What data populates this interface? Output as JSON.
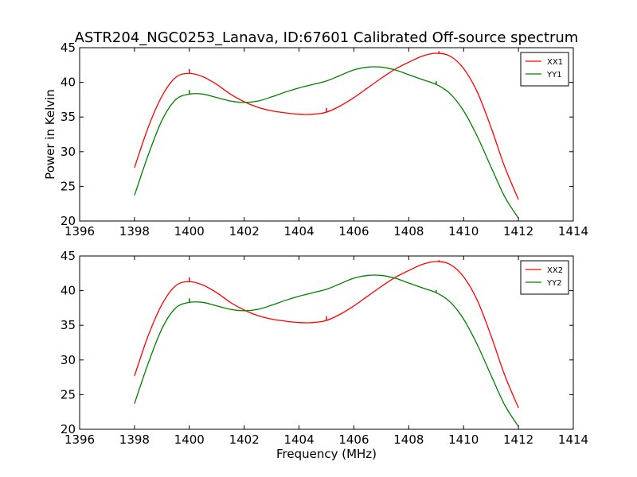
{
  "figure": {
    "title": "ASTR204_NGC0253_Lanava, ID:67601 Calibrated Off-source spectrum"
  },
  "chart_data": [
    {
      "type": "line",
      "xlabel": "",
      "ylabel": "Power in Kelvin",
      "xlim": [
        1396,
        1414
      ],
      "ylim": [
        20,
        45
      ],
      "xticks": [
        1396,
        1398,
        1400,
        1402,
        1404,
        1406,
        1408,
        1410,
        1412,
        1414
      ],
      "yticks": [
        20,
        25,
        30,
        35,
        40,
        45
      ],
      "grid": false,
      "legend": "top-right",
      "series": [
        {
          "name": "XX1",
          "color": "#ff0000",
          "x": [
            1398.0,
            1398.5,
            1399.0,
            1399.5,
            1400.0,
            1400.5,
            1401.0,
            1401.5,
            1402.0,
            1402.5,
            1403.0,
            1403.5,
            1404.0,
            1404.5,
            1405.0,
            1405.5,
            1406.0,
            1406.5,
            1407.0,
            1407.5,
            1408.0,
            1408.5,
            1409.0,
            1409.5,
            1410.0,
            1410.5,
            1411.0,
            1411.5,
            1412.0
          ],
          "y": [
            27.7,
            33.5,
            38.0,
            40.7,
            41.3,
            40.8,
            39.7,
            38.3,
            37.2,
            36.4,
            35.9,
            35.6,
            35.4,
            35.4,
            35.7,
            36.6,
            37.8,
            39.2,
            40.6,
            41.9,
            42.9,
            43.8,
            44.2,
            43.8,
            42.0,
            38.6,
            33.5,
            27.8,
            23.1
          ],
          "spikes": [
            {
              "x": 1400.0,
              "y": 41.9
            },
            {
              "x": 1405.0,
              "y": 36.3
            },
            {
              "x": 1409.1,
              "y": 44.5
            }
          ]
        },
        {
          "name": "YY1",
          "color": "#008000",
          "x": [
            1398.0,
            1398.5,
            1399.0,
            1399.5,
            1400.0,
            1400.5,
            1401.0,
            1401.5,
            1402.0,
            1402.5,
            1403.0,
            1403.5,
            1404.0,
            1404.5,
            1405.0,
            1405.5,
            1406.0,
            1406.5,
            1407.0,
            1407.5,
            1408.0,
            1408.5,
            1409.0,
            1409.5,
            1410.0,
            1410.5,
            1411.0,
            1411.5,
            1412.0
          ],
          "y": [
            23.7,
            29.5,
            34.5,
            37.5,
            38.3,
            38.3,
            37.8,
            37.3,
            37.1,
            37.3,
            37.9,
            38.6,
            39.2,
            39.7,
            40.2,
            41.0,
            41.8,
            42.2,
            42.2,
            41.8,
            41.1,
            40.4,
            39.7,
            38.4,
            35.9,
            32.2,
            27.8,
            23.5,
            20.4
          ],
          "spikes": [
            {
              "x": 1400.0,
              "y": 38.9
            },
            {
              "x": 1409.0,
              "y": 40.2
            }
          ]
        }
      ]
    },
    {
      "type": "line",
      "xlabel": "Frequency (MHz)",
      "ylabel": "",
      "xlim": [
        1396,
        1414
      ],
      "ylim": [
        20,
        45
      ],
      "xticks": [
        1396,
        1398,
        1400,
        1402,
        1404,
        1406,
        1408,
        1410,
        1412,
        1414
      ],
      "yticks": [
        20,
        25,
        30,
        35,
        40,
        45
      ],
      "grid": false,
      "legend": "top-right",
      "series": [
        {
          "name": "XX2",
          "color": "#ff0000",
          "x": [
            1398.0,
            1398.5,
            1399.0,
            1399.5,
            1400.0,
            1400.5,
            1401.0,
            1401.5,
            1402.0,
            1402.5,
            1403.0,
            1403.5,
            1404.0,
            1404.5,
            1405.0,
            1405.5,
            1406.0,
            1406.5,
            1407.0,
            1407.5,
            1408.0,
            1408.5,
            1409.0,
            1409.5,
            1410.0,
            1410.5,
            1411.0,
            1411.5,
            1412.0
          ],
          "y": [
            27.7,
            33.5,
            38.0,
            40.7,
            41.3,
            40.8,
            39.7,
            38.3,
            37.2,
            36.4,
            35.9,
            35.6,
            35.4,
            35.4,
            35.7,
            36.6,
            37.8,
            39.2,
            40.6,
            41.9,
            42.9,
            43.8,
            44.2,
            43.8,
            42.0,
            38.6,
            33.5,
            27.8,
            23.1
          ],
          "spikes": [
            {
              "x": 1400.0,
              "y": 41.9
            },
            {
              "x": 1405.0,
              "y": 36.3
            },
            {
              "x": 1409.1,
              "y": 44.4
            }
          ]
        },
        {
          "name": "YY2",
          "color": "#008000",
          "x": [
            1398.0,
            1398.5,
            1399.0,
            1399.5,
            1400.0,
            1400.5,
            1401.0,
            1401.5,
            1402.0,
            1402.5,
            1403.0,
            1403.5,
            1404.0,
            1404.5,
            1405.0,
            1405.5,
            1406.0,
            1406.5,
            1407.0,
            1407.5,
            1408.0,
            1408.5,
            1409.0,
            1409.5,
            1410.0,
            1410.5,
            1411.0,
            1411.5,
            1412.0
          ],
          "y": [
            23.7,
            29.5,
            34.5,
            37.5,
            38.3,
            38.3,
            37.8,
            37.3,
            37.1,
            37.3,
            37.9,
            38.6,
            39.2,
            39.7,
            40.2,
            41.0,
            41.8,
            42.2,
            42.2,
            41.8,
            41.1,
            40.4,
            39.7,
            38.4,
            35.9,
            32.2,
            27.8,
            23.5,
            20.4
          ],
          "spikes": [
            {
              "x": 1400.0,
              "y": 38.9
            },
            {
              "x": 1409.0,
              "y": 40.1
            }
          ]
        }
      ]
    }
  ]
}
